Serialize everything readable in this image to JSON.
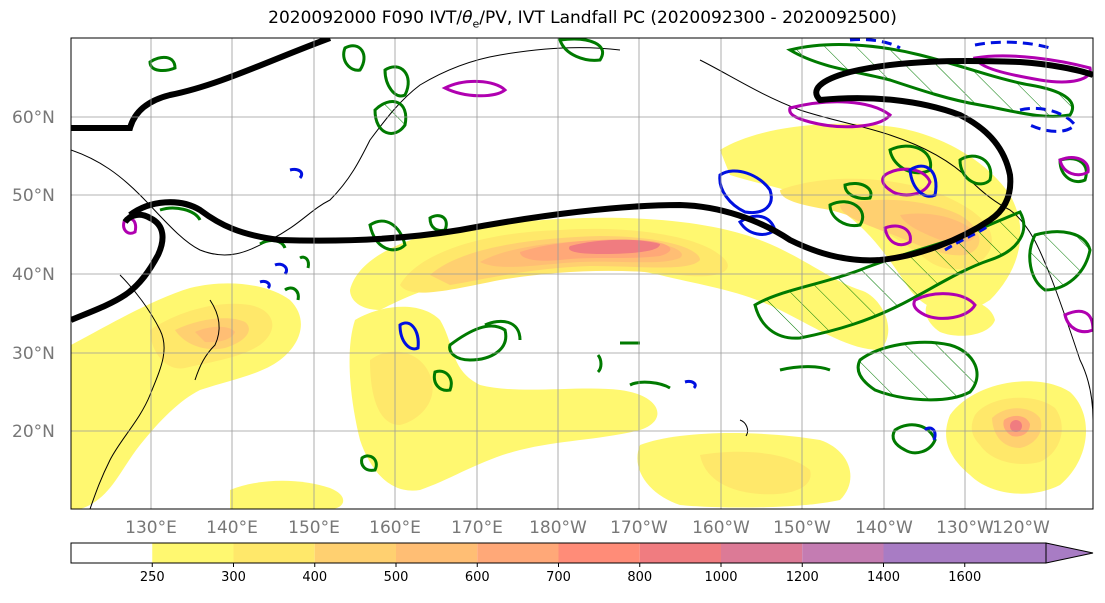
{
  "title": {
    "prefix": "2020092000 F090 IVT/",
    "theta": "θ",
    "theta_sub": "e",
    "suffix": "/PV, IVT Landfall PC (2020092300 - 2020092500)"
  },
  "axes": {
    "lat_labels": [
      "60°N",
      "50°N",
      "40°N",
      "30°N",
      "20°N"
    ],
    "lon_labels": [
      "130°E",
      "140°E",
      "150°E",
      "160°E",
      "170°E",
      "180°W",
      "170°W",
      "160°W",
      "150°W",
      "140°W",
      "130°W",
      "120°W"
    ]
  },
  "colorbar": {
    "ticks": [
      "250",
      "300",
      "400",
      "500",
      "600",
      "700",
      "800",
      "1000",
      "1200",
      "1400",
      "1600"
    ],
    "colors": [
      "#ffffff",
      "#fff870",
      "#ffe86a",
      "#ffd070",
      "#ffbe74",
      "#ffa878",
      "#ff8c78",
      "#f07c80",
      "#dc7a96",
      "#c47cb2",
      "#a87cc4"
    ]
  },
  "colors": {
    "ivt_low": "#fff870",
    "ivt_mid": "#ffbe74",
    "ivt_high": "#f07c80",
    "pv_contour": "#007a00",
    "theta_contour": "#b000b0",
    "neg_contour": "#0010e0",
    "landfall_contour": "#000000"
  }
}
